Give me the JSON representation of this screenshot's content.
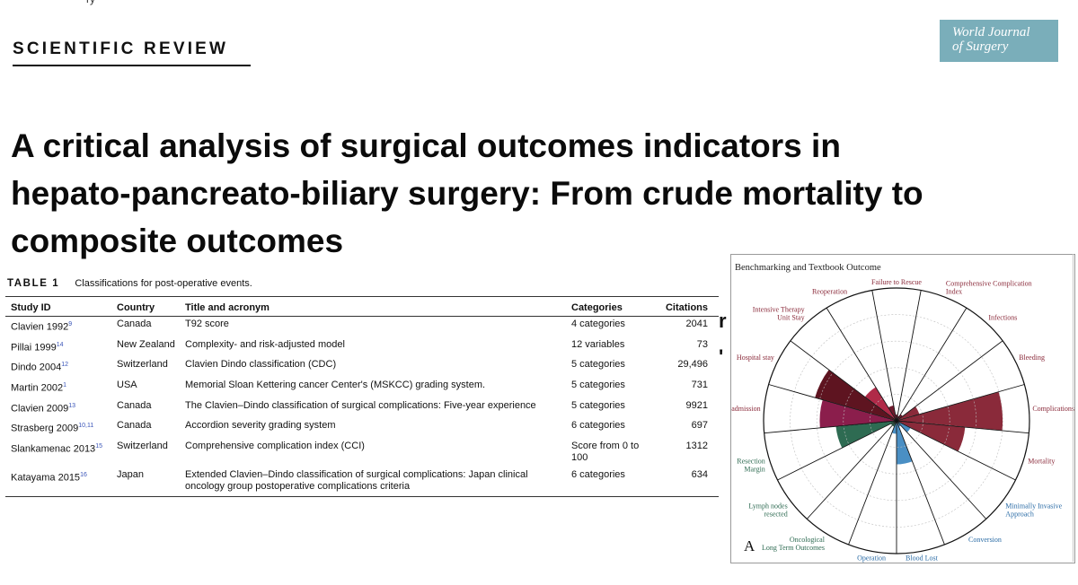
{
  "header": {
    "kicker": "SCIENTIFIC REVIEW",
    "journal": [
      "World Journal",
      "of Surgery"
    ]
  },
  "article": {
    "title_lines": [
      "A critical analysis of surgical outcomes indicators in",
      "hepato-pancreato-biliary surgery: From crude mortality to",
      "composite outcomes"
    ]
  },
  "table": {
    "label": "TABLE 1",
    "caption": "Classifications for post-operative events.",
    "headers": [
      "Study ID",
      "Country",
      "Title and acronym",
      "Categories",
      "Citations"
    ],
    "rows": [
      {
        "study": "Clavien 1992",
        "ref": "9",
        "country": "Canada",
        "title": "T92 score",
        "categories": "4 categories",
        "citations": "2041"
      },
      {
        "study": "Pillai 1999",
        "ref": "14",
        "country": "New Zealand",
        "title": "Complexity- and risk-adjusted model",
        "categories": "12 variables",
        "citations": "73"
      },
      {
        "study": "Dindo 2004",
        "ref": "12",
        "country": "Switzerland",
        "title": "Clavien Dindo classification (CDC)",
        "categories": "5 categories",
        "citations": "29,496"
      },
      {
        "study": "Martin 2002",
        "ref": "1",
        "country": "USA",
        "title": "Memorial Sloan Kettering cancer Center's (MSKCC) grading system.",
        "categories": "5 categories",
        "citations": "731"
      },
      {
        "study": "Clavien 2009",
        "ref": "13",
        "country": "Canada",
        "title": "The Clavien–Dindo classification of surgical complications: Five-year experience",
        "categories": "5 categories",
        "citations": "9921"
      },
      {
        "study": "Strasberg 2009",
        "ref": "10,11",
        "country": "Canada",
        "title": "Accordion severity grading system",
        "categories": "6 categories",
        "citations": "697"
      },
      {
        "study": "Slankamenac 2013",
        "ref": "15",
        "country": "Switzerland",
        "title": "Comprehensive complication index (CCI)",
        "categories": "Score from 0 to 100",
        "citations": "1312"
      },
      {
        "study": "Katayama 2015",
        "ref": "16",
        "country": "Japan",
        "title": "Extended Clavien–Dindo classification of surgical complications: Japan clinical oncology group postoperative complications criteria",
        "categories": "6 categories",
        "citations": "634"
      }
    ]
  },
  "chart_data": {
    "type": "polar-area",
    "title": "Benchmarking and Textbook Outcome",
    "panel_label": "A",
    "rings": 5,
    "categories": [
      "Failure to Rescue",
      "Comprehensive Complication Index",
      "Infections",
      "Bleeding",
      "Complications",
      "Mortality",
      "Minimally Invasive Approach",
      "Conversion",
      "Blood Lost",
      "Operation Duration",
      "Oncological Long Term Outcomes",
      "Lymph nodes resected",
      "Resection Margin",
      "Readmission",
      "Hospital stay",
      "Intensive Therapy Unit Stay",
      "Reoperation"
    ],
    "values": [
      0.05,
      0.04,
      0.06,
      0.18,
      0.8,
      0.52,
      0.12,
      0.05,
      0.33,
      0.1,
      0.05,
      0.05,
      0.46,
      0.58,
      0.64,
      0.3,
      0.12
    ],
    "colors": [
      "#6e1a2c",
      "#6e1a2c",
      "#6e1a2c",
      "#8a2a3a",
      "#8a2a3a",
      "#8a2a3a",
      "#4a8fc4",
      "#4a8fc4",
      "#4a8fc4",
      "#4a8fc4",
      "#2e6b52",
      "#2e6b52",
      "#2e6b52",
      "#8b1e4c",
      "#5e1420",
      "#b02a48",
      "#6e1a2c"
    ],
    "label_colors": [
      "#8a2a3a",
      "#8a2a3a",
      "#8a2a3a",
      "#8a2a3a",
      "#8a2a3a",
      "#8a2a3a",
      "#2b6ca6",
      "#2b6ca6",
      "#2b6ca6",
      "#2b6ca6",
      "#2e6b52",
      "#2e6b52",
      "#2e6b52",
      "#8a2a3a",
      "#8a2a3a",
      "#8a2a3a",
      "#8a2a3a"
    ]
  }
}
